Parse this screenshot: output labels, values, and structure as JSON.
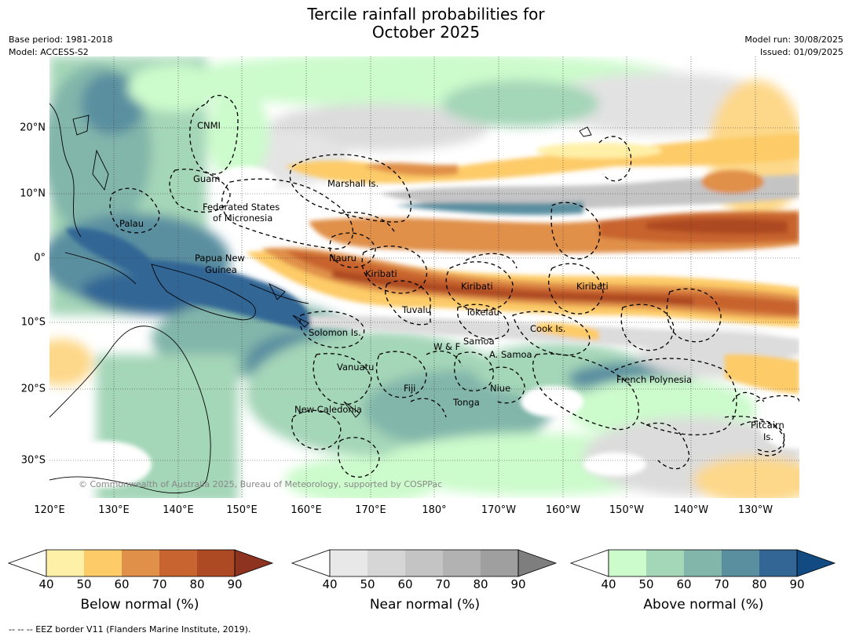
{
  "title_line1": "Tercile rainfall probabilities for",
  "title_line2": "October 2025",
  "meta": {
    "base_period": "Base period: 1981-2018",
    "model": "Model: ACCESS-S2",
    "model_run": "Model run: 30/08/2025",
    "issued": "Issued: 01/09/2025"
  },
  "map": {
    "lat_labels": [
      "20°N",
      "10°N",
      "0°",
      "10°S",
      "20°S",
      "30°S"
    ],
    "lon_labels": [
      "120°E",
      "130°E",
      "140°E",
      "150°E",
      "160°E",
      "170°E",
      "180°",
      "170°W",
      "160°W",
      "150°W",
      "140°W",
      "130°W"
    ],
    "places": [
      "CNMI",
      "Guam",
      "Marshall Is.",
      "Federated States",
      "of Micronesia",
      "Palau",
      "Papua New",
      "Guinea",
      "Nauru",
      "Kiribati",
      "Kiribati",
      "Kiribati",
      "Tuvalu",
      "Tokelau",
      "Cook Is.",
      "Solomon Is.",
      "Samoa",
      "W & F",
      "A. Samoa",
      "Vanuatu",
      "Fiji",
      "Niue",
      "French Polynesia",
      "Tonga",
      "New Caledonia",
      "Pitcairn",
      "Is."
    ],
    "copyright": "© Commonwealth of Australia 2025, Bureau of Meteorology, supported by COSPPac"
  },
  "colorbars": [
    {
      "title": "Below normal (%)",
      "ticks": [
        "40",
        "50",
        "60",
        "70",
        "80",
        "90"
      ],
      "colors": [
        "#ffffff",
        "#fff0a8",
        "#fdcb67",
        "#e09048",
        "#c8642f",
        "#ad4a24",
        "#8e3320"
      ]
    },
    {
      "title": "Near normal (%)",
      "ticks": [
        "40",
        "50",
        "60",
        "70",
        "80",
        "90"
      ],
      "colors": [
        "#ffffff",
        "#e8e8e8",
        "#d6d6d6",
        "#c4c4c4",
        "#b2b2b2",
        "#9f9f9f",
        "#7e7e7e"
      ]
    },
    {
      "title": "Above normal (%)",
      "ticks": [
        "40",
        "50",
        "60",
        "70",
        "80",
        "90"
      ],
      "colors": [
        "#ffffff",
        "#ccfbcc",
        "#a4d6b8",
        "#82b6aa",
        "#5a8fa0",
        "#336695",
        "#124a82"
      ]
    }
  ],
  "footnote": "--  --  -- EEZ border V11 (Flanders Marine Institute, 2019)."
}
